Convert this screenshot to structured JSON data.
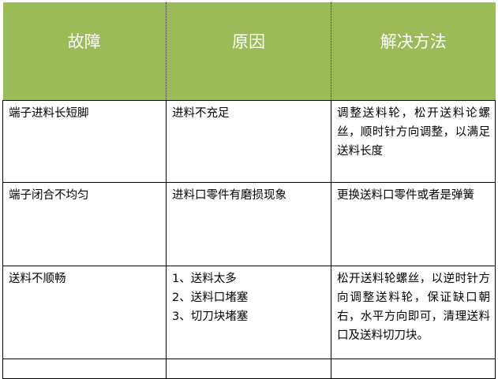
{
  "headers": [
    "故障",
    "原因",
    "解决方法"
  ],
  "rows": [
    {
      "fault": "端子进料长短脚",
      "cause": "进料不充足",
      "solution": "调整送料轮，松开送料论螺丝，顺时针方向调整，以满足送料长度"
    },
    {
      "fault": "端子闭合不均匀",
      "cause": "进料口零件有磨损现象",
      "solution": "更换送料口零件或者是弹簧"
    },
    {
      "fault": "送料不顺畅",
      "cause": [
        "1、送料太多",
        "2、送料口堵塞",
        "3、切刀块堵塞"
      ],
      "solution": "松开送料轮螺丝，以逆时针方向调整送料轮，保证缺口朝右，水平方向即可，清理送料口及送料切刀块。"
    }
  ],
  "theme": {
    "header_bg": "#9bbb59"
  }
}
